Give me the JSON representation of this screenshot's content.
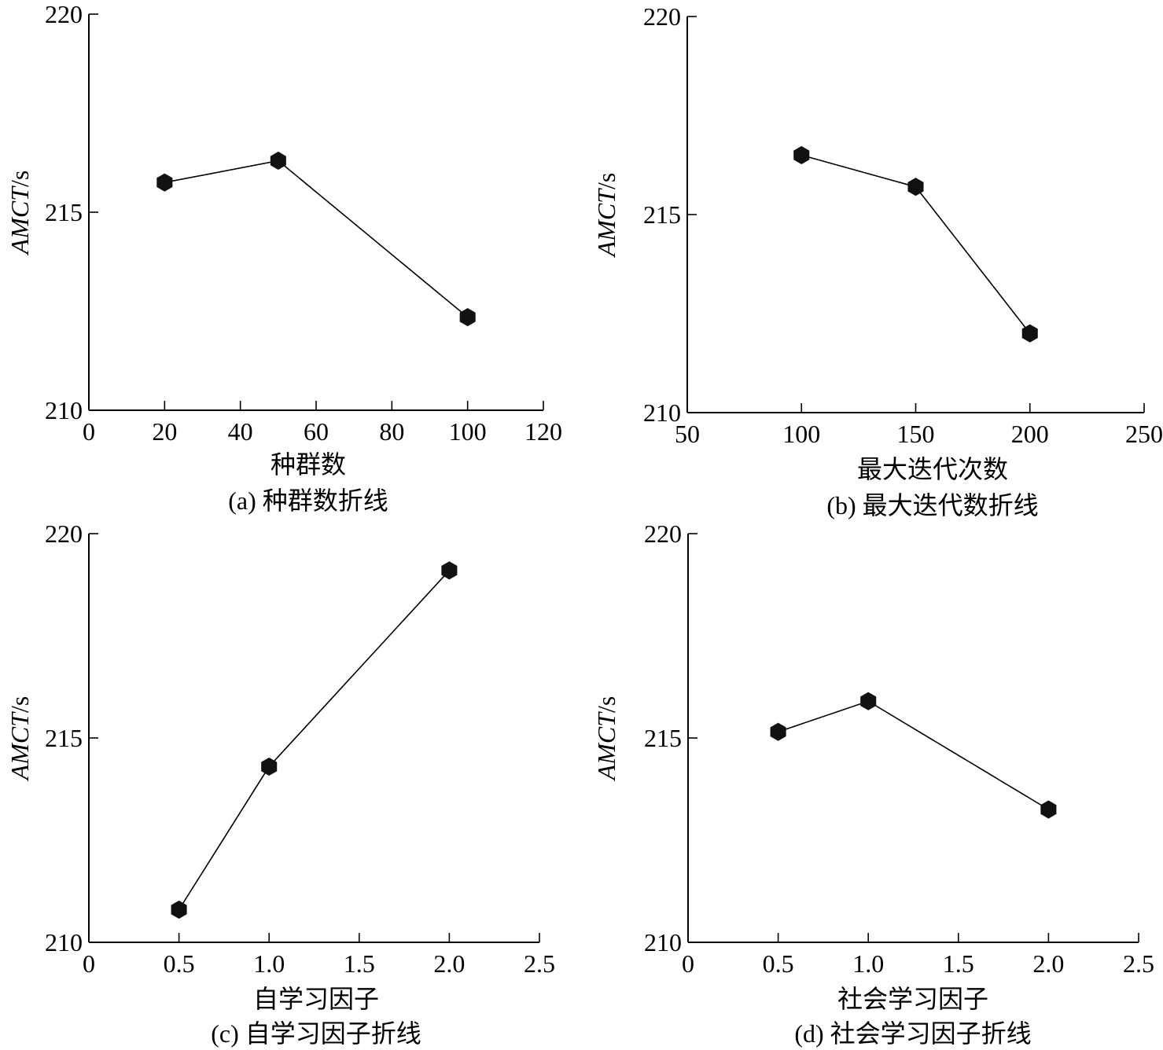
{
  "chart_data": [
    {
      "id": "a",
      "type": "line",
      "x": [
        20,
        50,
        100
      ],
      "values": [
        215.75,
        216.3,
        212.35
      ],
      "xlabel": "种群数",
      "ylabel_var": "AMCT",
      "ylabel_unit": "/s",
      "caption": "(a) 种群数折线",
      "xlim": [
        0,
        120
      ],
      "ylim": [
        210,
        220
      ],
      "xticks": [
        "0",
        "20",
        "40",
        "60",
        "80",
        "100",
        "120"
      ],
      "yticks": [
        "210",
        "215",
        "220"
      ],
      "grid": false,
      "marker": "hexagon"
    },
    {
      "id": "b",
      "type": "line",
      "x": [
        100,
        150,
        200
      ],
      "values": [
        216.5,
        215.7,
        212.0
      ],
      "xlabel": "最大迭代次数",
      "ylabel_var": "AMCT",
      "ylabel_unit": "/s",
      "caption": "(b) 最大迭代数折线",
      "xlim": [
        50,
        250
      ],
      "ylim": [
        210,
        220
      ],
      "xticks": [
        "50",
        "100",
        "150",
        "200",
        "250"
      ],
      "yticks": [
        "210",
        "215",
        "220"
      ],
      "grid": false,
      "marker": "hexagon"
    },
    {
      "id": "c",
      "type": "line",
      "x": [
        0.5,
        1.0,
        2.0
      ],
      "values": [
        210.8,
        214.3,
        219.1
      ],
      "xlabel": "自学习因子",
      "ylabel_var": "AMCT",
      "ylabel_unit": "/s",
      "caption": "(c) 自学习因子折线",
      "xlim": [
        0,
        2.5
      ],
      "ylim": [
        210,
        220
      ],
      "xticks": [
        "0",
        "0.5",
        "1.0",
        "1.5",
        "2.0",
        "2.5"
      ],
      "yticks": [
        "210",
        "215",
        "220"
      ],
      "grid": false,
      "marker": "hexagon"
    },
    {
      "id": "d",
      "type": "line",
      "x": [
        0.5,
        1.0,
        2.0
      ],
      "values": [
        215.15,
        215.9,
        213.25
      ],
      "xlabel": "社会学习因子",
      "ylabel_var": "AMCT",
      "ylabel_unit": "/s",
      "caption": "(d) 社会学习因子折线",
      "xlim": [
        0,
        2.5
      ],
      "ylim": [
        210,
        220
      ],
      "xticks": [
        "0",
        "0.5",
        "1.0",
        "1.5",
        "2.0",
        "2.5"
      ],
      "yticks": [
        "210",
        "215",
        "220"
      ],
      "grid": false,
      "marker": "hexagon"
    }
  ]
}
